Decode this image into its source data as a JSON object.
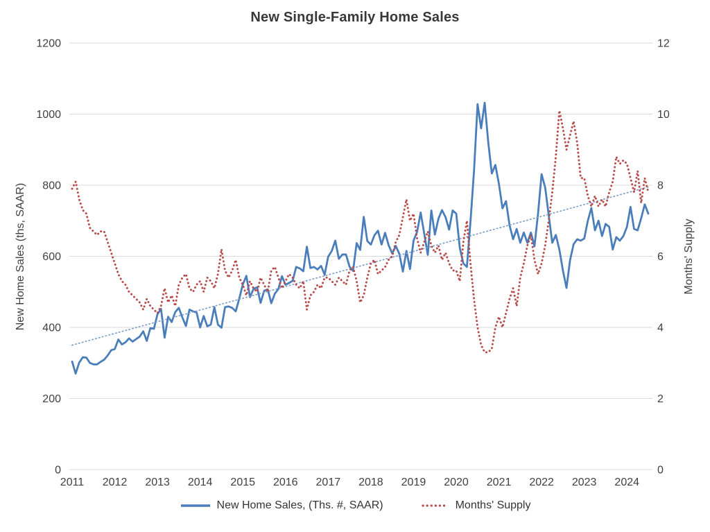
{
  "chart_data": {
    "type": "line",
    "title": "New Single-Family Home Sales",
    "x_axis": {
      "start_year": 2011,
      "frequency": "monthly",
      "tick_labels": [
        "2011",
        "2012",
        "2013",
        "2014",
        "2015",
        "2016",
        "2017",
        "2018",
        "2019",
        "2020",
        "2021",
        "2022",
        "2023",
        "2024"
      ]
    },
    "left_axis": {
      "label": "New Home Sales (ths, SAAR)",
      "range": [
        0,
        1200
      ],
      "tick_labels": [
        "0",
        "200",
        "400",
        "600",
        "800",
        "1000",
        "1200"
      ]
    },
    "right_axis": {
      "label": "Months' Supply",
      "range": [
        0,
        12
      ],
      "tick_labels": [
        "0",
        "2",
        "4",
        "6",
        "8",
        "10",
        "12"
      ]
    },
    "grid": "horizontal",
    "legend_position": "bottom",
    "series": [
      {
        "name": "New Home Sales, (Ths. #, SAAR)",
        "axis": "left",
        "color": "#4a7ebb",
        "line_style": "solid",
        "values": [
          304,
          270,
          301,
          316,
          315,
          300,
          296,
          296,
          303,
          309,
          321,
          336,
          339,
          366,
          352,
          358,
          369,
          360,
          367,
          374,
          389,
          362,
          398,
          396,
          437,
          452,
          371,
          430,
          415,
          443,
          455,
          428,
          404,
          450,
          445,
          442,
          400,
          432,
          403,
          408,
          457,
          408,
          399,
          457,
          459,
          455,
          445,
          481,
          521,
          545,
          485,
          508,
          513,
          469,
          503,
          507,
          468,
          495,
          508,
          544,
          520,
          525,
          531,
          570,
          566,
          558,
          627,
          567,
          570,
          563,
          573,
          548,
          599,
          615,
          644,
          593,
          605,
          605,
          571,
          559,
          637,
          618,
          711,
          643,
          633,
          659,
          672,
          633,
          666,
          631,
          608,
          629,
          607,
          557,
          615,
          564,
          644,
          669,
          723,
          664,
          604,
          729,
          661,
          706,
          730,
          710,
          675,
          729,
          720,
          624,
          580,
          570,
          697,
          840,
          1028,
          960,
          1032,
          921,
          833,
          857,
          804,
          735,
          755,
          687,
          648,
          677,
          638,
          667,
          638,
          667,
          628,
          720,
          831,
          794,
          716,
          638,
          660,
          619,
          560,
          511,
          589,
          634,
          648,
          644,
          650,
          700,
          736,
          673,
          700,
          657,
          691,
          683,
          619,
          654,
          644,
          657,
          683,
          739,
          677,
          673,
          707,
          746,
          720
        ]
      },
      {
        "name": "Months' Supply",
        "axis": "right",
        "color": "#b84c4b",
        "line_style": "dotted",
        "values": [
          7.9,
          8.1,
          7.6,
          7.3,
          7.2,
          6.8,
          6.7,
          6.6,
          6.7,
          6.7,
          6.4,
          6.1,
          5.8,
          5.5,
          5.3,
          5.2,
          5.0,
          4.9,
          4.8,
          4.7,
          4.5,
          4.8,
          4.6,
          4.5,
          4.4,
          4.6,
          5.1,
          4.7,
          4.9,
          4.6,
          5.2,
          5.4,
          5.5,
          5.1,
          5.0,
          5.2,
          5.3,
          5.0,
          5.4,
          5.3,
          5.1,
          5.5,
          6.2,
          5.6,
          5.4,
          5.6,
          5.9,
          5.4,
          5.2,
          4.9,
          5.3,
          5.1,
          5.0,
          5.4,
          5.2,
          5.0,
          5.6,
          5.7,
          5.4,
          5.1,
          5.3,
          5.5,
          5.4,
          5.2,
          5.1,
          5.3,
          4.5,
          4.9,
          5.0,
          5.2,
          5.1,
          5.4,
          5.4,
          5.3,
          5.2,
          5.4,
          5.3,
          5.2,
          5.6,
          5.7,
          5.3,
          4.7,
          4.9,
          5.4,
          5.8,
          5.9,
          5.5,
          5.6,
          5.7,
          5.9,
          6.0,
          6.4,
          6.6,
          7.1,
          7.6,
          7.0,
          7.2,
          6.5,
          6.1,
          6.4,
          6.7,
          6.3,
          6.1,
          6.3,
          5.9,
          6.1,
          5.8,
          5.6,
          5.6,
          5.3,
          6.4,
          7.0,
          5.8,
          4.8,
          4.0,
          3.5,
          3.3,
          3.3,
          3.4,
          4.0,
          4.3,
          4.0,
          4.4,
          4.8,
          5.1,
          4.6,
          5.4,
          5.8,
          6.3,
          6.6,
          5.9,
          5.5,
          5.8,
          6.3,
          7.0,
          7.8,
          8.8,
          10.1,
          9.6,
          9.0,
          9.4,
          9.8,
          9.2,
          8.2,
          8.2,
          7.7,
          7.4,
          7.7,
          7.4,
          7.6,
          7.4,
          7.8,
          8.1,
          8.8,
          8.6,
          8.7,
          8.6,
          8.2,
          7.8,
          8.4,
          7.5,
          8.2,
          7.8
        ]
      }
    ],
    "trendline": {
      "of_series": "New Home Sales, (Ths. #, SAAR)",
      "axis": "left",
      "color": "#7f9ec7",
      "line_style": "dotted",
      "start_value": 350,
      "end_value": 795
    },
    "colors": {
      "grid": "#d9d9d9",
      "text": "#3f3f3f",
      "background": "#ffffff"
    }
  }
}
